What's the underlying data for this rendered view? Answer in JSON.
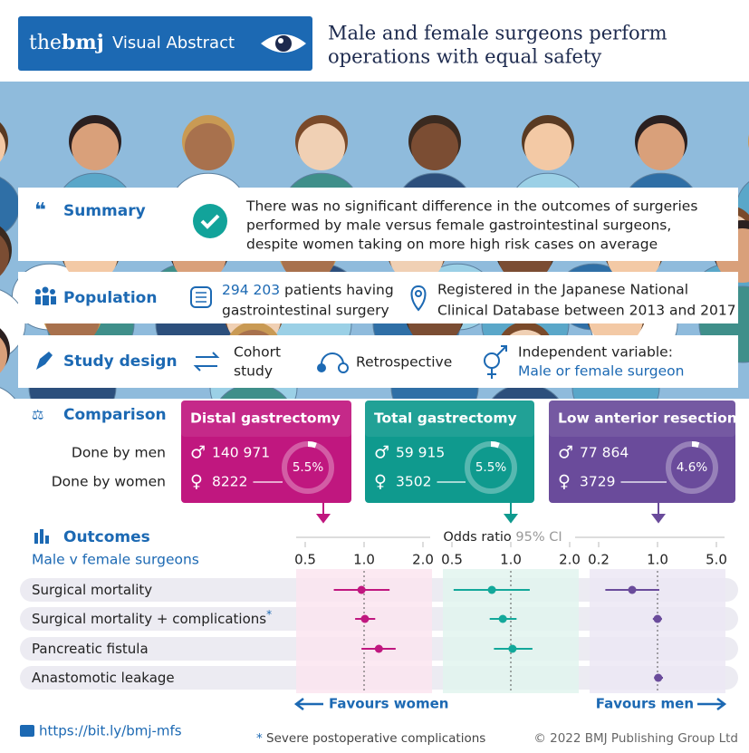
{
  "header": {
    "brand_the": "the",
    "brand_bmj": "bmj",
    "label": "Visual Abstract",
    "title": [
      "Male and female surgeons perform",
      "operations with equal safety"
    ]
  },
  "summary": {
    "heading": "Summary",
    "text": [
      "There was no significant difference in the outcomes of surgeries",
      "performed by male versus female gastrointestinal surgeons,",
      "despite women taking on more high risk cases on average"
    ]
  },
  "population": {
    "heading": "Population",
    "count": "294 203",
    "count_text": "patients having",
    "count_text2": "gastrointestinal surgery",
    "registry": [
      "Registered in the Japanese National",
      "Clinical Database between 2013 and 2017"
    ]
  },
  "study_design": {
    "heading": "Study design",
    "type": [
      "Cohort",
      "study"
    ],
    "timing": "Retrospective",
    "variable_label": "Independent variable:",
    "variable": "Male or female surgeon"
  },
  "comparison": {
    "heading": "Comparison",
    "rows": [
      "Done by men",
      "Done by women"
    ],
    "symbols": {
      "men": "♂",
      "women": "♀"
    },
    "groups": [
      {
        "name": "Distal gastrectomy",
        "color": "#c0177f",
        "men": "140 971",
        "women": "8222",
        "women_share": {
          "value": 5.5,
          "label": "5.5%"
        }
      },
      {
        "name": "Total gastrectomy",
        "color": "#0f9a8e",
        "men": "59 915",
        "women": "3502",
        "women_share": {
          "value": 5.5,
          "label": "5.5%"
        }
      },
      {
        "name": "Low anterior resection",
        "color": "#6a4b9b",
        "men": "77 864",
        "women": "3729",
        "women_share": {
          "value": 4.6,
          "label": "4.6%"
        }
      }
    ]
  },
  "outcomes": {
    "heading": "Outcomes",
    "subheading": "Male v female surgeons",
    "axis_label": "Odds ratio",
    "ci_label": "95% CI",
    "log_scale": true,
    "rows": [
      "Surgical mortality",
      "Surgical mortality + complications",
      "Pancreatic fistula",
      "Anastomotic leakage"
    ],
    "footnote_row": 1,
    "panels": [
      {
        "color": "#c0177f",
        "background": "#fbe5f0",
        "xlim": [
          0.5,
          2
        ],
        "xticks": [
          0.5,
          {
            "value": 1,
            "label": "1.0"
          },
          {
            "value": 2,
            "label": "2.0"
          }
        ],
        "estimates": [
          0.97,
          1.01,
          1.19,
          null
        ],
        "ci_lower": [
          0.7,
          0.9,
          0.97,
          null
        ],
        "ci_upper": [
          1.35,
          1.14,
          1.45,
          null
        ]
      },
      {
        "color": "#13a89a",
        "background": "#e2f4ee",
        "xlim": [
          0.5,
          2
        ],
        "xticks": [
          0.5,
          {
            "value": 1,
            "label": "1.0"
          },
          {
            "value": 2,
            "label": "2.0"
          }
        ],
        "estimates": [
          0.8,
          0.91,
          1.02,
          null
        ],
        "ci_lower": [
          0.51,
          0.78,
          0.82,
          null
        ],
        "ci_upper": [
          1.25,
          1.07,
          1.29,
          null
        ]
      },
      {
        "color": "#6a4b9b",
        "background": "#ece8f5",
        "xlim": [
          0.2,
          5
        ],
        "xticks": [
          0.2,
          {
            "value": 1,
            "label": "1.0"
          },
          {
            "value": 5,
            "label": "5.0"
          }
        ],
        "estimates": [
          0.5,
          1.0,
          null,
          1.02
        ],
        "ci_lower": [
          0.24,
          0.88,
          null,
          0.91
        ],
        "ci_upper": [
          1.05,
          1.13,
          null,
          1.16
        ]
      }
    ],
    "favours_left": "Favours women",
    "favours_right": "Favours men"
  },
  "footer": {
    "link": "https://bit.ly/bmj-mfs",
    "footnote": {
      "mark": "*",
      "text": "Severe postoperative complications"
    },
    "copyright": "© 2022 BMJ Publishing Group Ltd"
  }
}
